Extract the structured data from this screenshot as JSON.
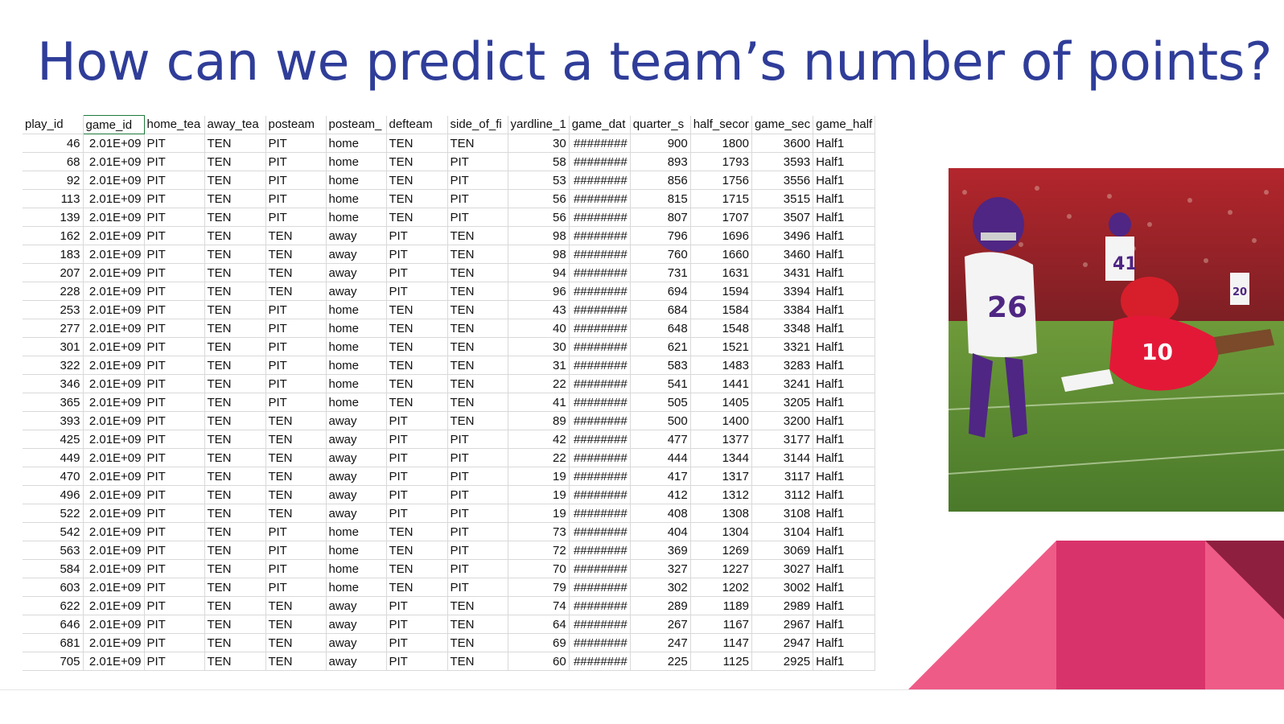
{
  "slide": {
    "title": "How can we predict a team’s number of points?"
  },
  "sheet": {
    "columns": [
      "play_id",
      "game_id",
      "home_tea",
      "away_tea",
      "posteam",
      "posteam_",
      "defteam",
      "side_of_fi",
      "yardline_1",
      "game_dat",
      "quarter_s",
      "half_secor",
      "game_sec",
      "game_half"
    ],
    "rows": [
      [
        "46",
        "2.01E+09",
        "PIT",
        "TEN",
        "PIT",
        "home",
        "TEN",
        "TEN",
        "30",
        "########",
        "900",
        "1800",
        "3600",
        "Half1"
      ],
      [
        "68",
        "2.01E+09",
        "PIT",
        "TEN",
        "PIT",
        "home",
        "TEN",
        "PIT",
        "58",
        "########",
        "893",
        "1793",
        "3593",
        "Half1"
      ],
      [
        "92",
        "2.01E+09",
        "PIT",
        "TEN",
        "PIT",
        "home",
        "TEN",
        "PIT",
        "53",
        "########",
        "856",
        "1756",
        "3556",
        "Half1"
      ],
      [
        "113",
        "2.01E+09",
        "PIT",
        "TEN",
        "PIT",
        "home",
        "TEN",
        "PIT",
        "56",
        "########",
        "815",
        "1715",
        "3515",
        "Half1"
      ],
      [
        "139",
        "2.01E+09",
        "PIT",
        "TEN",
        "PIT",
        "home",
        "TEN",
        "PIT",
        "56",
        "########",
        "807",
        "1707",
        "3507",
        "Half1"
      ],
      [
        "162",
        "2.01E+09",
        "PIT",
        "TEN",
        "TEN",
        "away",
        "PIT",
        "TEN",
        "98",
        "########",
        "796",
        "1696",
        "3496",
        "Half1"
      ],
      [
        "183",
        "2.01E+09",
        "PIT",
        "TEN",
        "TEN",
        "away",
        "PIT",
        "TEN",
        "98",
        "########",
        "760",
        "1660",
        "3460",
        "Half1"
      ],
      [
        "207",
        "2.01E+09",
        "PIT",
        "TEN",
        "TEN",
        "away",
        "PIT",
        "TEN",
        "94",
        "########",
        "731",
        "1631",
        "3431",
        "Half1"
      ],
      [
        "228",
        "2.01E+09",
        "PIT",
        "TEN",
        "TEN",
        "away",
        "PIT",
        "TEN",
        "96",
        "########",
        "694",
        "1594",
        "3394",
        "Half1"
      ],
      [
        "253",
        "2.01E+09",
        "PIT",
        "TEN",
        "PIT",
        "home",
        "TEN",
        "TEN",
        "43",
        "########",
        "684",
        "1584",
        "3384",
        "Half1"
      ],
      [
        "277",
        "2.01E+09",
        "PIT",
        "TEN",
        "PIT",
        "home",
        "TEN",
        "TEN",
        "40",
        "########",
        "648",
        "1548",
        "3348",
        "Half1"
      ],
      [
        "301",
        "2.01E+09",
        "PIT",
        "TEN",
        "PIT",
        "home",
        "TEN",
        "TEN",
        "30",
        "########",
        "621",
        "1521",
        "3321",
        "Half1"
      ],
      [
        "322",
        "2.01E+09",
        "PIT",
        "TEN",
        "PIT",
        "home",
        "TEN",
        "TEN",
        "31",
        "########",
        "583",
        "1483",
        "3283",
        "Half1"
      ],
      [
        "346",
        "2.01E+09",
        "PIT",
        "TEN",
        "PIT",
        "home",
        "TEN",
        "TEN",
        "22",
        "########",
        "541",
        "1441",
        "3241",
        "Half1"
      ],
      [
        "365",
        "2.01E+09",
        "PIT",
        "TEN",
        "PIT",
        "home",
        "TEN",
        "TEN",
        "41",
        "########",
        "505",
        "1405",
        "3205",
        "Half1"
      ],
      [
        "393",
        "2.01E+09",
        "PIT",
        "TEN",
        "TEN",
        "away",
        "PIT",
        "TEN",
        "89",
        "########",
        "500",
        "1400",
        "3200",
        "Half1"
      ],
      [
        "425",
        "2.01E+09",
        "PIT",
        "TEN",
        "TEN",
        "away",
        "PIT",
        "PIT",
        "42",
        "########",
        "477",
        "1377",
        "3177",
        "Half1"
      ],
      [
        "449",
        "2.01E+09",
        "PIT",
        "TEN",
        "TEN",
        "away",
        "PIT",
        "PIT",
        "22",
        "########",
        "444",
        "1344",
        "3144",
        "Half1"
      ],
      [
        "470",
        "2.01E+09",
        "PIT",
        "TEN",
        "TEN",
        "away",
        "PIT",
        "PIT",
        "19",
        "########",
        "417",
        "1317",
        "3117",
        "Half1"
      ],
      [
        "496",
        "2.01E+09",
        "PIT",
        "TEN",
        "TEN",
        "away",
        "PIT",
        "PIT",
        "19",
        "########",
        "412",
        "1312",
        "3112",
        "Half1"
      ],
      [
        "522",
        "2.01E+09",
        "PIT",
        "TEN",
        "TEN",
        "away",
        "PIT",
        "PIT",
        "19",
        "########",
        "408",
        "1308",
        "3108",
        "Half1"
      ],
      [
        "542",
        "2.01E+09",
        "PIT",
        "TEN",
        "PIT",
        "home",
        "TEN",
        "PIT",
        "73",
        "########",
        "404",
        "1304",
        "3104",
        "Half1"
      ],
      [
        "563",
        "2.01E+09",
        "PIT",
        "TEN",
        "PIT",
        "home",
        "TEN",
        "PIT",
        "72",
        "########",
        "369",
        "1269",
        "3069",
        "Half1"
      ],
      [
        "584",
        "2.01E+09",
        "PIT",
        "TEN",
        "PIT",
        "home",
        "TEN",
        "PIT",
        "70",
        "########",
        "327",
        "1227",
        "3027",
        "Half1"
      ],
      [
        "603",
        "2.01E+09",
        "PIT",
        "TEN",
        "PIT",
        "home",
        "TEN",
        "PIT",
        "79",
        "########",
        "302",
        "1202",
        "3002",
        "Half1"
      ],
      [
        "622",
        "2.01E+09",
        "PIT",
        "TEN",
        "TEN",
        "away",
        "PIT",
        "TEN",
        "74",
        "########",
        "289",
        "1189",
        "2989",
        "Half1"
      ],
      [
        "646",
        "2.01E+09",
        "PIT",
        "TEN",
        "TEN",
        "away",
        "PIT",
        "TEN",
        "64",
        "########",
        "267",
        "1167",
        "2967",
        "Half1"
      ],
      [
        "681",
        "2.01E+09",
        "PIT",
        "TEN",
        "TEN",
        "away",
        "PIT",
        "TEN",
        "69",
        "########",
        "247",
        "1147",
        "2947",
        "Half1"
      ],
      [
        "705",
        "2.01E+09",
        "PIT",
        "TEN",
        "TEN",
        "away",
        "PIT",
        "TEN",
        "60",
        "########",
        "225",
        "1125",
        "2925",
        "Half1"
      ]
    ]
  },
  "photo": {
    "jersey_numbers": [
      "26",
      "41",
      "10",
      "20"
    ]
  },
  "colors": {
    "title": "#2f3d99",
    "deco_light_pink": "#ef5b87",
    "deco_pink": "#d9336b",
    "deco_dark": "#8f1f3f",
    "selected_cell_border": "#1d7a3a"
  }
}
